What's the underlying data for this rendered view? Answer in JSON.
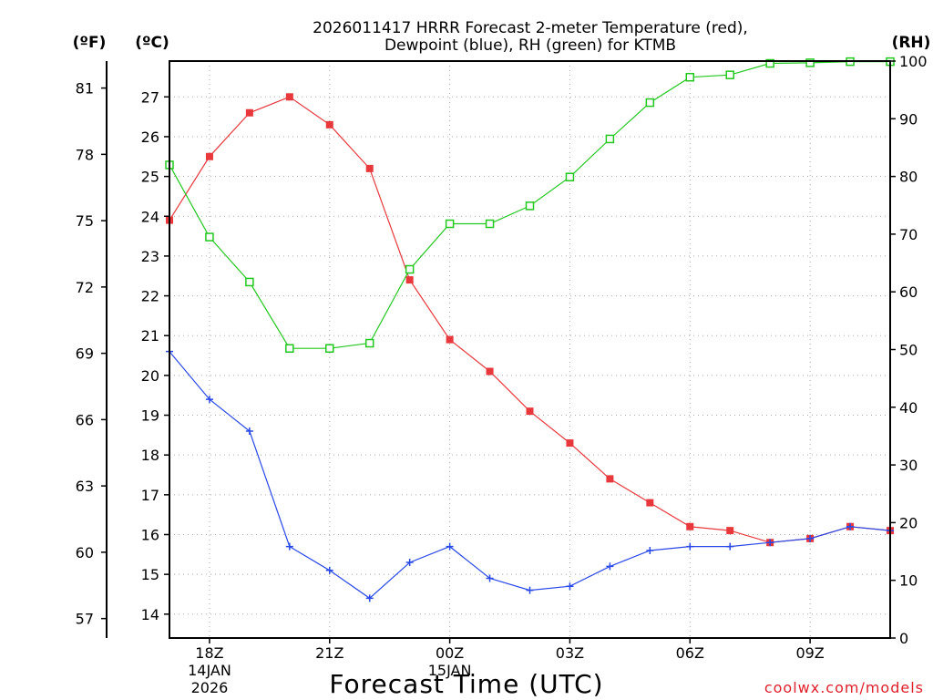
{
  "chart_data": {
    "type": "line",
    "title_line1": "2026011417 HRRR Forecast 2-meter Temperature (red),",
    "title_line2": "Dewpoint (blue), RH (green) for KTMB",
    "xlabel": "Forecast Time (UTC)",
    "credit": "coolwx.com/models",
    "grid": true,
    "axes": {
      "temp_f": {
        "unit_label": "(ºF)",
        "ticks": [
          "57",
          "60",
          "63",
          "66",
          "69",
          "72",
          "75",
          "78",
          "81"
        ]
      },
      "temp_c": {
        "unit_label": "(ºC)",
        "ylim": [
          13.4,
          27.9
        ],
        "ticks": [
          "14",
          "15",
          "16",
          "17",
          "18",
          "19",
          "20",
          "21",
          "22",
          "23",
          "24",
          "25",
          "26",
          "27"
        ]
      },
      "rh": {
        "unit_label": "(RH)",
        "ylim": [
          0,
          100
        ],
        "ticks": [
          "0",
          "10",
          "20",
          "30",
          "40",
          "50",
          "60",
          "70",
          "80",
          "90",
          "100"
        ]
      }
    },
    "x_hours": [
      17,
      18,
      19,
      20,
      21,
      22,
      23,
      24,
      25,
      26,
      27,
      28,
      29,
      30,
      31,
      32,
      33,
      34,
      35
    ],
    "x_range": [
      17,
      35
    ],
    "x_ticks": [
      {
        "hour": 18,
        "label": "18Z",
        "date": "14JAN",
        "year": "2026"
      },
      {
        "hour": 21,
        "label": "21Z"
      },
      {
        "hour": 24,
        "label": "00Z",
        "date": "15JAN"
      },
      {
        "hour": 27,
        "label": "03Z"
      },
      {
        "hour": 30,
        "label": "06Z"
      },
      {
        "hour": 33,
        "label": "09Z"
      }
    ],
    "series": [
      {
        "name": "Temperature",
        "axis": "temp_c",
        "color": "#e8383c",
        "marker": "filled-square",
        "values": [
          23.9,
          25.5,
          26.6,
          27.0,
          26.3,
          25.2,
          22.4,
          20.9,
          20.1,
          19.1,
          18.3,
          17.4,
          16.8,
          16.2,
          16.1,
          15.8,
          15.9,
          16.2,
          16.1
        ]
      },
      {
        "name": "Dewpoint",
        "axis": "temp_c",
        "color": "#2848e8",
        "marker": "plus",
        "values": [
          20.6,
          19.4,
          18.6,
          15.7,
          15.1,
          14.4,
          15.3,
          15.7,
          14.9,
          14.6,
          14.7,
          15.2,
          15.6,
          15.7,
          15.7,
          15.8,
          15.9,
          16.2,
          16.1
        ]
      },
      {
        "name": "RH",
        "axis": "rh",
        "color": "#22c81e",
        "marker": "open-square",
        "values": [
          82,
          69.5,
          61.7,
          50.2,
          50.2,
          51.1,
          63.9,
          71.8,
          71.8,
          74.9,
          79.9,
          86.5,
          92.8,
          97.2,
          97.6,
          99.6,
          99.7,
          99.9,
          99.9
        ]
      }
    ]
  }
}
